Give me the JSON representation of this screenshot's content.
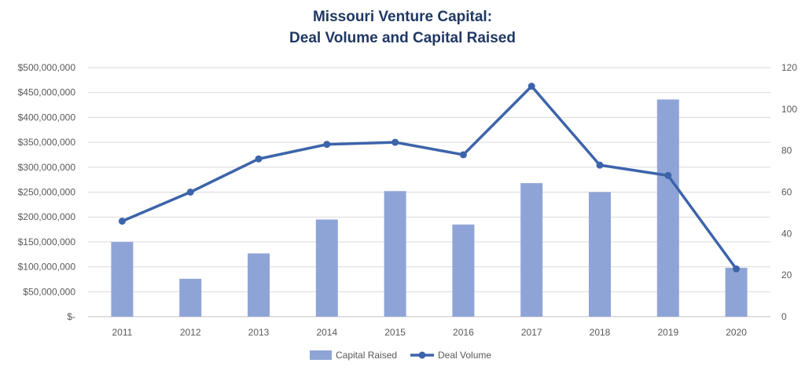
{
  "chart_data": {
    "type": "bar+line",
    "title": "Missouri Venture Capital:",
    "subtitle": "Deal Volume and Capital Raised",
    "categories": [
      "2011",
      "2012",
      "2013",
      "2014",
      "2015",
      "2016",
      "2017",
      "2018",
      "2019",
      "2020"
    ],
    "series": [
      {
        "name": "Capital Raised",
        "type": "bar",
        "axis": "left",
        "color": "#8fa4d6",
        "values": [
          150000000,
          76000000,
          127000000,
          195000000,
          252000000,
          185000000,
          268000000,
          250000000,
          436000000,
          98000000
        ]
      },
      {
        "name": "Deal Volume",
        "type": "line",
        "axis": "right",
        "color": "#3c64aa",
        "values": [
          46,
          60,
          76,
          83,
          84,
          78,
          111,
          73,
          68,
          23
        ]
      }
    ],
    "y_left": {
      "lim": [
        0,
        500000000
      ],
      "tick_values": [
        0,
        50000000,
        100000000,
        150000000,
        200000000,
        250000000,
        300000000,
        350000000,
        400000000,
        450000000,
        500000000
      ],
      "tick_labels": [
        "$-",
        "$50,000,000",
        "$100,000,000",
        "$150,000,000",
        "$200,000,000",
        "$250,000,000",
        "$300,000,000",
        "$350,000,000",
        "$400,000,000",
        "$450,000,000",
        "$500,000,000"
      ]
    },
    "y_right": {
      "lim": [
        0,
        120
      ],
      "tick_values": [
        0,
        20,
        40,
        60,
        80,
        100,
        120
      ],
      "tick_labels": [
        "0",
        "20",
        "40",
        "60",
        "80",
        "100",
        "120"
      ]
    },
    "grid": true,
    "legend": "bottom"
  }
}
